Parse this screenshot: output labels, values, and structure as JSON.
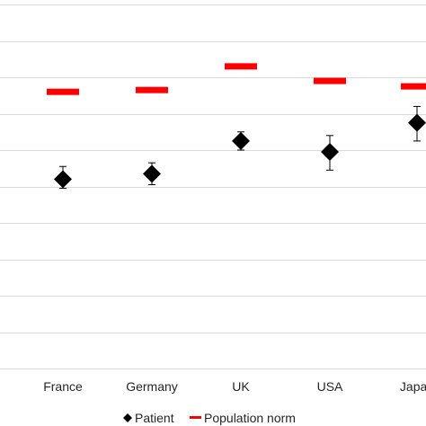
{
  "chart_data": {
    "type": "scatter",
    "categories": [
      "France",
      "Germany",
      "UK",
      "USA",
      "Japan"
    ],
    "grid": true,
    "ylim": [
      0,
      1
    ],
    "series": [
      {
        "name": "Patient",
        "marker": "diamond",
        "color": "#000000",
        "values": [
          0.52,
          0.535,
          0.625,
          0.595,
          0.675
        ],
        "error": [
          [
            0.495,
            0.555
          ],
          [
            0.505,
            0.565
          ],
          [
            0.6,
            0.65
          ],
          [
            0.545,
            0.64
          ],
          [
            0.625,
            0.72
          ]
        ]
      },
      {
        "name": "Population norm",
        "marker": "dash",
        "color": "#ff0000",
        "values": [
          0.76,
          0.765,
          0.83,
          0.79,
          0.775
        ]
      }
    ],
    "legend": "bottom"
  }
}
